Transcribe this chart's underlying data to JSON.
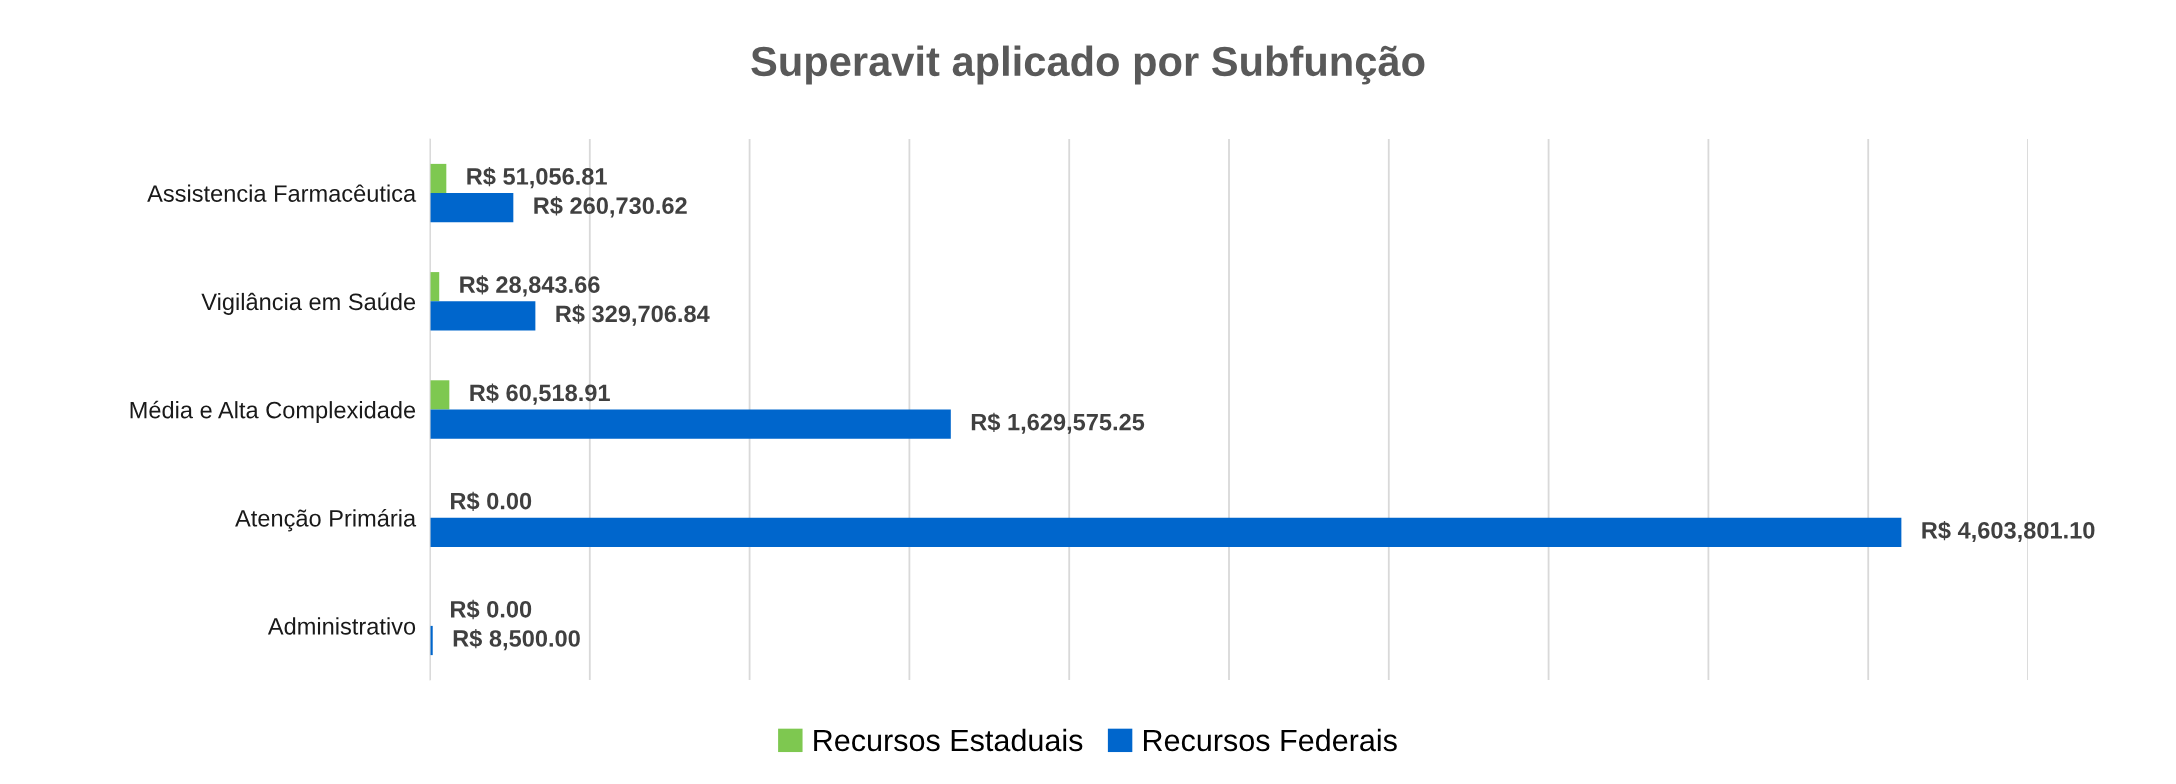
{
  "chart_data": {
    "type": "bar",
    "orientation": "horizontal",
    "title": "Superavit aplicado por Subfunção",
    "categories": [
      "Assistencia Farmacêutica",
      "Vigilância em Saúde",
      "Média e Alta Complexidade",
      "Atenção Primária",
      "Administrativo"
    ],
    "series": [
      {
        "name": "Recursos Estaduais",
        "color": "#7ec850",
        "values": [
          51056.81,
          28843.66,
          60518.91,
          0.0,
          0.0
        ],
        "value_labels": [
          "R$ 51,056.81",
          "R$ 28,843.66",
          "R$ 60,518.91",
          "R$ 0.00",
          "R$ 0.00"
        ]
      },
      {
        "name": "Recursos Federais",
        "color": "#0066cc",
        "values": [
          260730.62,
          329706.84,
          1629575.25,
          4603801.1,
          8500.0
        ],
        "value_labels": [
          "R$ 260,730.62",
          "R$ 329,706.84",
          "R$ 1,629,575.25",
          "R$ 4,603,801.10",
          "R$ 8,500.00"
        ]
      }
    ],
    "xlim": [
      0,
      5000000
    ],
    "xticks": [
      {
        "value": 0,
        "label": null
      },
      {
        "value": 500000,
        "label": null
      },
      {
        "value": 1000000,
        "label": null
      },
      {
        "value": 1500000,
        "label": null
      },
      {
        "value": 2000000,
        "label": null
      },
      {
        "value": 2500000,
        "label": null
      },
      {
        "value": 3000000,
        "label": null
      },
      {
        "value": 3500000,
        "label": null
      },
      {
        "value": 4000000,
        "label": null
      },
      {
        "value": 4500000,
        "label": null
      },
      {
        "value": 5000000,
        "label": null
      }
    ],
    "tick_labels": "y",
    "grid": "x",
    "legend": "bottom"
  }
}
